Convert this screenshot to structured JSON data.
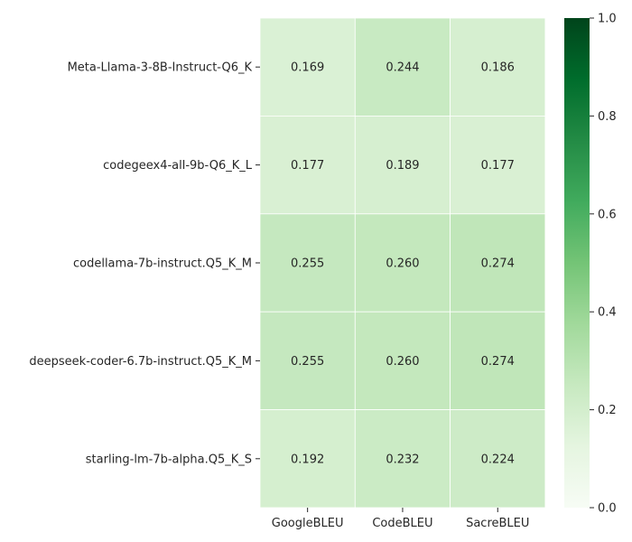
{
  "chart_data": {
    "type": "heatmap",
    "title": "",
    "xlabel": "",
    "ylabel": "",
    "columns": [
      "GoogleBLEU",
      "CodeBLEU",
      "SacreBLEU"
    ],
    "rows": [
      "Meta-Llama-3-8B-Instruct-Q6_K",
      "codegeex4-all-9b-Q6_K_L",
      "codellama-7b-instruct.Q5_K_M",
      "deepseek-coder-6.7b-instruct.Q5_K_M",
      "starling-lm-7b-alpha.Q5_K_S"
    ],
    "values": [
      [
        0.169,
        0.244,
        0.186
      ],
      [
        0.177,
        0.189,
        0.177
      ],
      [
        0.255,
        0.26,
        0.274
      ],
      [
        0.255,
        0.26,
        0.274
      ],
      [
        0.192,
        0.232,
        0.224
      ]
    ],
    "annotations": [
      [
        "0.169",
        "0.244",
        "0.186"
      ],
      [
        "0.177",
        "0.189",
        "0.177"
      ],
      [
        "0.255",
        "0.260",
        "0.274"
      ],
      [
        "0.255",
        "0.260",
        "0.274"
      ],
      [
        "0.192",
        "0.232",
        "0.224"
      ]
    ],
    "colormap": "Greens",
    "vmin": 0,
    "vmax": 1,
    "colorbar_ticks": [
      "0.0",
      "0.2",
      "0.4",
      "0.6",
      "0.8",
      "1.0"
    ],
    "grid": false,
    "cell_border_color": "#ffffff"
  }
}
